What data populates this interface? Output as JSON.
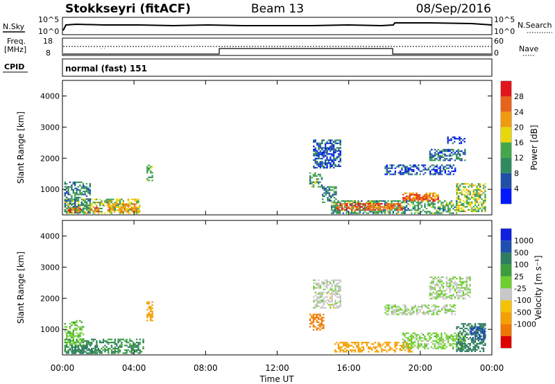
{
  "header": {
    "station": "Stokkseyri (fitACF)",
    "beam": "Beam 13",
    "date": "08/Sep/2016"
  },
  "aux_panels": {
    "nsky": {
      "label": "N.Sky",
      "ticks": [
        "10^5",
        "10^0"
      ]
    },
    "nsearch": {
      "label": "N.Search",
      "ticks": [
        "10^5",
        "10^0"
      ]
    },
    "freq": {
      "label_top": "Freq.",
      "label_unit": "[MHz]",
      "ticks": [
        "18",
        "8"
      ]
    },
    "nave": {
      "label": "Nave",
      "ticks": [
        "60",
        "0"
      ]
    },
    "cpid": {
      "label": "CPID",
      "value": "normal (fast) 151"
    }
  },
  "colors": {
    "power": [
      "#0018ff",
      "#1f4fa6",
      "#2f8a5e",
      "#43a84a",
      "#e8d80a",
      "#f09a0e",
      "#e8631a",
      "#e3141c"
    ],
    "velocity": [
      "#e00000",
      "#f07800",
      "#f5a000",
      "#f6c200",
      "#c8c8c8",
      "#6fcf2f",
      "#3a9e3a",
      "#2e7d5f",
      "#1f4fb0",
      "#1020e0"
    ]
  },
  "chart_data": [
    {
      "type": "heatmap",
      "title": "Power [dB]",
      "xlabel": "Time UT",
      "ylabel": "Slant Range [km]",
      "xticks": [
        "00:00",
        "04:00",
        "08:00",
        "12:00",
        "16:00",
        "20:00",
        "00:00"
      ],
      "xlim": [
        0,
        24
      ],
      "ylim": [
        180,
        4500
      ],
      "yticks": [
        1000,
        2000,
        3000,
        4000
      ],
      "colorbar": {
        "label": "Power [dB]",
        "ticks": [
          "4",
          "8",
          "12",
          "16",
          "20",
          "24",
          "28"
        ]
      },
      "regions": [
        {
          "t": [
            0.1,
            4.2
          ],
          "r": [
            250,
            700
          ],
          "v": 16
        },
        {
          "t": [
            0.1,
            1.5
          ],
          "r": [
            250,
            1250
          ],
          "v": 10
        },
        {
          "t": [
            0.3,
            1.0
          ],
          "r": [
            300,
            450
          ],
          "v": 26
        },
        {
          "t": [
            1.5,
            2.0
          ],
          "r": [
            300,
            420
          ],
          "v": 28
        },
        {
          "t": [
            2.5,
            4.3
          ],
          "r": [
            300,
            550
          ],
          "v": 22
        },
        {
          "t": [
            4.7,
            5.0
          ],
          "r": [
            1250,
            1800
          ],
          "v": 14
        },
        {
          "t": [
            13.8,
            14.5
          ],
          "r": [
            1100,
            1550
          ],
          "v": 12
        },
        {
          "t": [
            14.0,
            14.8
          ],
          "r": [
            2100,
            2200
          ],
          "v": 5
        },
        {
          "t": [
            14.0,
            15.5
          ],
          "r": [
            1700,
            2600
          ],
          "v": 6
        },
        {
          "t": [
            14.5,
            15.3
          ],
          "r": [
            600,
            1100
          ],
          "v": 10
        },
        {
          "t": [
            15.0,
            22.0
          ],
          "r": [
            250,
            650
          ],
          "v": 12
        },
        {
          "t": [
            15.3,
            19.0
          ],
          "r": [
            320,
            560
          ],
          "v": 28
        },
        {
          "t": [
            17.0,
            18.5
          ],
          "r": [
            420,
            520
          ],
          "v": 24
        },
        {
          "t": [
            19.0,
            21.0
          ],
          "r": [
            700,
            900
          ],
          "v": 22
        },
        {
          "t": [
            18.0,
            22.0
          ],
          "r": [
            1500,
            1800
          ],
          "v": 6
        },
        {
          "t": [
            20.5,
            22.5
          ],
          "r": [
            1950,
            2300
          ],
          "v": 8
        },
        {
          "t": [
            21.5,
            22.5
          ],
          "r": [
            2500,
            2700
          ],
          "v": 4
        },
        {
          "t": [
            22.0,
            23.6
          ],
          "r": [
            300,
            1200
          ],
          "v": 16
        },
        {
          "t": [
            19.0,
            21.0
          ],
          "r": [
            650,
            850
          ],
          "v": 28
        }
      ]
    },
    {
      "type": "heatmap",
      "title": "Velocity [m s^-1]",
      "xlabel": "Time UT",
      "ylabel": "Slant Range [km]",
      "xticks": [
        "00:00",
        "04:00",
        "08:00",
        "12:00",
        "16:00",
        "20:00",
        "00:00"
      ],
      "xlim": [
        0,
        24
      ],
      "ylim": [
        180,
        4500
      ],
      "yticks": [
        1000,
        2000,
        3000,
        4000
      ],
      "colorbar": {
        "label": "Velocity [m s^-1]",
        "ticks": [
          "-1000",
          "-500",
          "-100",
          "-25",
          "25",
          "100",
          "500",
          "1000"
        ]
      },
      "regions": [
        {
          "t": [
            0.1,
            4.5
          ],
          "r": [
            250,
            700
          ],
          "v": 100
        },
        {
          "t": [
            0.1,
            1.2
          ],
          "r": [
            500,
            1300
          ],
          "v": 20
        },
        {
          "t": [
            0.5,
            2.0
          ],
          "r": [
            250,
            500
          ],
          "v": 250
        },
        {
          "t": [
            4.7,
            5.0
          ],
          "r": [
            1300,
            1900
          ],
          "v": -200
        },
        {
          "t": [
            13.8,
            14.6
          ],
          "r": [
            1000,
            1500
          ],
          "v": -700
        },
        {
          "t": [
            14.0,
            15.5
          ],
          "r": [
            1700,
            2600
          ],
          "v": -10
        },
        {
          "t": [
            15.2,
            19.5
          ],
          "r": [
            300,
            600
          ],
          "v": -200
        },
        {
          "t": [
            19.0,
            22.5
          ],
          "r": [
            400,
            900
          ],
          "v": 10
        },
        {
          "t": [
            18.0,
            22.0
          ],
          "r": [
            1500,
            1800
          ],
          "v": 0
        },
        {
          "t": [
            20.5,
            22.8
          ],
          "r": [
            2000,
            2700
          ],
          "v": 0
        },
        {
          "t": [
            22.0,
            23.6
          ],
          "r": [
            300,
            1200
          ],
          "v": 200
        },
        {
          "t": [
            22.8,
            23.6
          ],
          "r": [
            700,
            1100
          ],
          "v": 700
        }
      ]
    }
  ]
}
